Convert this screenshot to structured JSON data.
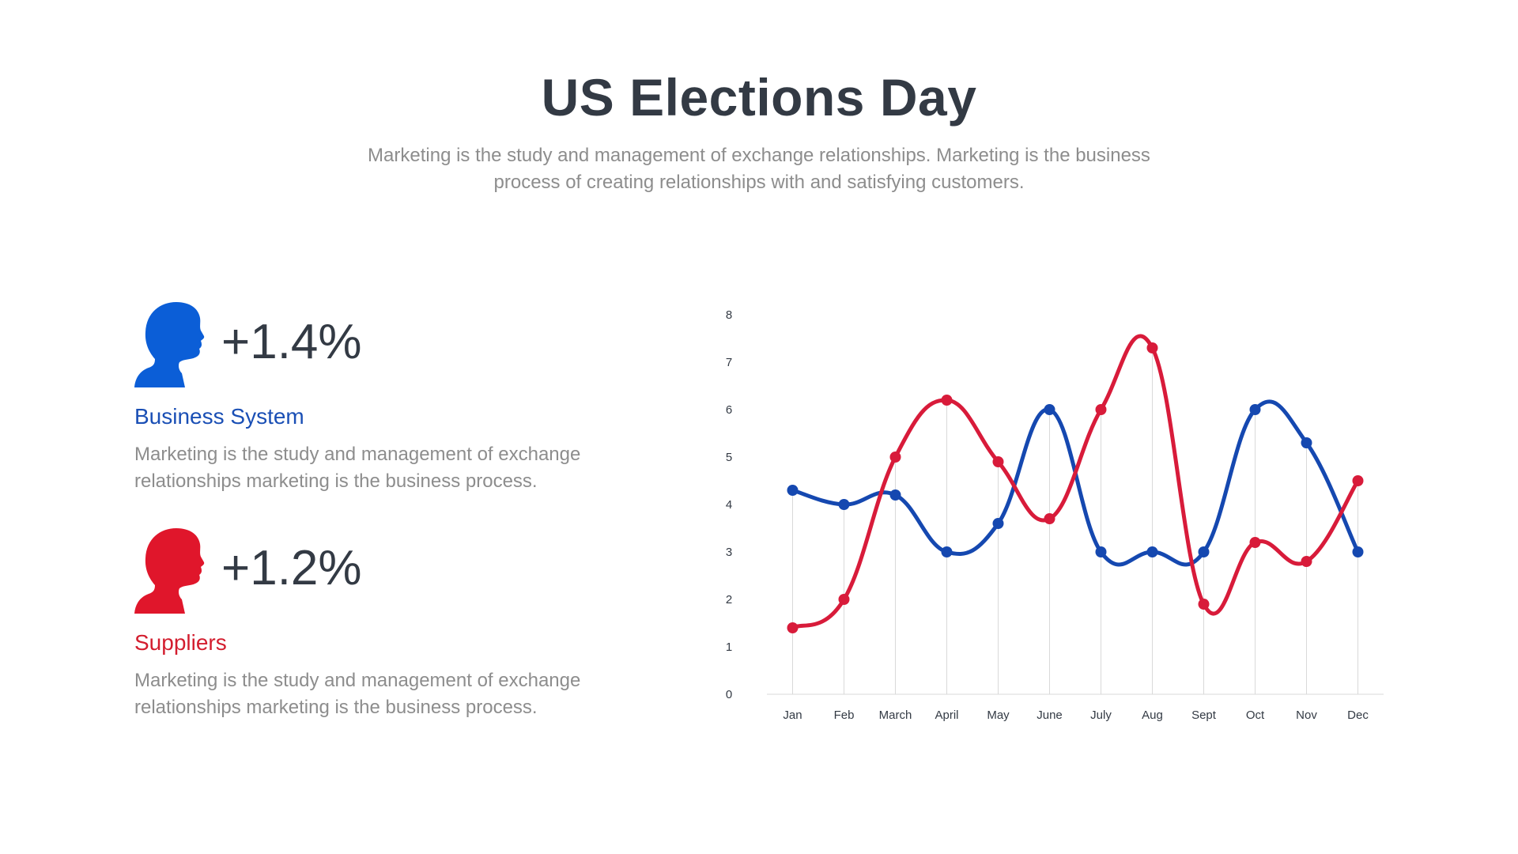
{
  "slide": {
    "title": "US Elections Day",
    "subtitle": "Marketing is the study and management of exchange relationships. Marketing is the business process of creating relationships with and satisfying customers."
  },
  "stats": [
    {
      "icon": "male-head-silhouette-icon",
      "color": "#0b5ed7",
      "value": "+1.4%",
      "label": "Business System",
      "label_color": "#1a4fb5",
      "description": "Marketing is the study and management of exchange relationships marketing is the business process."
    },
    {
      "icon": "male-head-silhouette-icon",
      "color": "#e0162b",
      "value": "+1.2%",
      "label": "Suppliers",
      "label_color": "#d31d2e",
      "description": "Marketing is the study and management of exchange relationships marketing is the business process."
    }
  ],
  "chart_data": {
    "type": "line",
    "smooth": true,
    "categories": [
      "Jan",
      "Feb",
      "March",
      "April",
      "May",
      "June",
      "July",
      "Aug",
      "Sept",
      "Oct",
      "Nov",
      "Dec"
    ],
    "series": [
      {
        "color": "#1548b0",
        "values": [
          4.3,
          4.0,
          4.2,
          3.0,
          3.6,
          6.0,
          3.0,
          3.0,
          3.0,
          6.0,
          5.3,
          3.0
        ]
      },
      {
        "color": "#d81b3a",
        "values": [
          1.4,
          2.0,
          5.0,
          6.2,
          4.9,
          3.7,
          6.0,
          7.3,
          1.9,
          3.2,
          2.8,
          4.5
        ]
      }
    ],
    "ylim": [
      0,
      8
    ],
    "yticks": [
      "0",
      "1",
      "2",
      "3",
      "4",
      "5",
      "6",
      "7",
      "8"
    ],
    "grid": "vertical lines at categories",
    "title": "",
    "xlabel": "",
    "ylabel": ""
  }
}
